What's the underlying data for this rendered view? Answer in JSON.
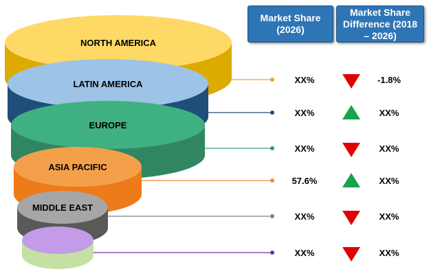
{
  "headers": {
    "market_share": "Market Share\n(2026)",
    "difference": "Market Share\nDifference (2018\n– 2026)"
  },
  "regions": [
    {
      "label": "NORTH AMERICA",
      "share": "XX%",
      "trend": "down",
      "difference": "-1.8%",
      "color": "#ffd966",
      "shade": "#ddaa00",
      "dot": "#f0a030"
    },
    {
      "label": "LATIN AMERICA",
      "share": "XX%",
      "trend": "up",
      "difference": "XX%",
      "color": "#9dc3e6",
      "shade": "#1f4e79",
      "dot": "#1f4e79"
    },
    {
      "label": "EUROPE",
      "share": "XX%",
      "trend": "down",
      "difference": "XX%",
      "color": "#3fb07f",
      "shade": "#2f8660",
      "dot": "#3a9a6e"
    },
    {
      "label": "ASIA PACIFIC",
      "share": "57.6%",
      "trend": "up",
      "difference": "XX%",
      "color": "#f4a04a",
      "shade": "#ee7a1a",
      "dot": "#f08a30"
    },
    {
      "label": "MIDDLE EAST",
      "share": "XX%",
      "trend": "down",
      "difference": "XX%",
      "color": "#a6a6a6",
      "shade": "#595959",
      "dot": "#808080"
    },
    {
      "label": "",
      "share": "XX%",
      "trend": "down",
      "difference": "XX%",
      "color": "#c39be8",
      "shade": "#c5e0a5",
      "dot": "#7030a0"
    }
  ],
  "trend_colors": {
    "up": "#16a34a",
    "down": "#e00000"
  }
}
